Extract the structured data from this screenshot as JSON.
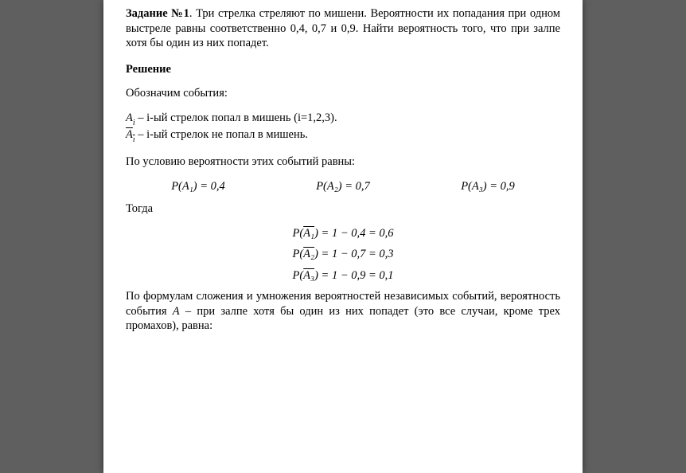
{
  "task": {
    "label": "Задание №1",
    "text_after_label": ". Три стрелка стреляют по мишени. Вероятности их попадания при одном выстреле равны соответственно 0,4, 0,7 и 0,9. Найти вероятность того, что при залпе хотя бы один из них попадет."
  },
  "solution_heading": "Решение",
  "events_intro": "Обозначим события:",
  "def_A": {
    "var": "A",
    "sub": "i",
    "desc": " – i-ый стрелок попал в мишень (i=1,2,3)."
  },
  "def_Abar": {
    "var": "A",
    "sub_html": "ı",
    "desc": " – i-ый стрелок не попал в мишень."
  },
  "cond_intro": "По условию вероятности этих событий равны:",
  "probs": {
    "p1": "P(A₁) = 0,4",
    "p2": "P(A₂) = 0,7",
    "p3": "P(A₃) = 0,9"
  },
  "then": "Тогда",
  "complements": {
    "c1_lhs": "P(",
    "c1_var": "A₁",
    "c1_rhs": ") = 1 − 0,4 = 0,6",
    "c2_lhs": "P(",
    "c2_var": "A₂",
    "c2_rhs": ") = 1 − 0,7 = 0,3",
    "c3_lhs": "P(",
    "c3_var": "A₃",
    "c3_rhs": ") = 1 − 0,9 = 0,1"
  },
  "final_para_prefix": "По формулам сложения и умножения вероятностей независимых событий, вероятность события ",
  "final_para_var": "A",
  "final_para_suffix": " – при залпе хотя бы один из них попадет (это все случаи, кроме трех промахов), равна:"
}
